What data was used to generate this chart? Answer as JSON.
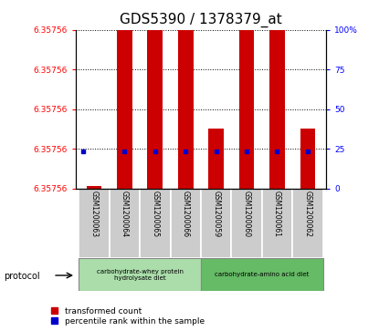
{
  "title": "GDS5390 / 1378379_at",
  "samples": [
    "GSM1200063",
    "GSM1200064",
    "GSM1200065",
    "GSM1200066",
    "GSM1200059",
    "GSM1200060",
    "GSM1200061",
    "GSM1200062"
  ],
  "red_bar_heights": [
    0.015,
    1.0,
    1.0,
    1.0,
    0.38,
    1.0,
    1.0,
    0.38
  ],
  "blue_dot_y": [
    0.235,
    0.235,
    0.235,
    0.235,
    0.235,
    0.235,
    0.235,
    0.235
  ],
  "blue_dot_x_offset": [
    -0.35,
    0,
    0,
    0,
    0,
    0,
    0,
    0
  ],
  "ytick_positions": [
    0.0,
    0.25,
    0.5,
    0.75,
    1.0
  ],
  "ytick_labels_left": [
    "6.35756",
    "6.35756",
    "6.35756",
    "6.35756",
    "6.35756"
  ],
  "ytick_labels_right": [
    "0",
    "25",
    "50",
    "75",
    "100%"
  ],
  "hlines": [
    0.25,
    0.5,
    0.75,
    1.0
  ],
  "group1_label": "carbohydrate-whey protein\nhydrolysate diet",
  "group2_label": "carbohydrate-amino acid diet",
  "group1_indices": [
    0,
    1,
    2,
    3
  ],
  "group2_indices": [
    4,
    5,
    6,
    7
  ],
  "protocol_label": "protocol",
  "legend_red": "transformed count",
  "legend_blue": "percentile rank within the sample",
  "bar_color": "#cc0000",
  "dot_color": "#0000cc",
  "group1_color": "#aaddaa",
  "group2_color": "#66bb66",
  "sample_bg": "#cccccc",
  "title_fontsize": 11,
  "bar_width": 0.5
}
